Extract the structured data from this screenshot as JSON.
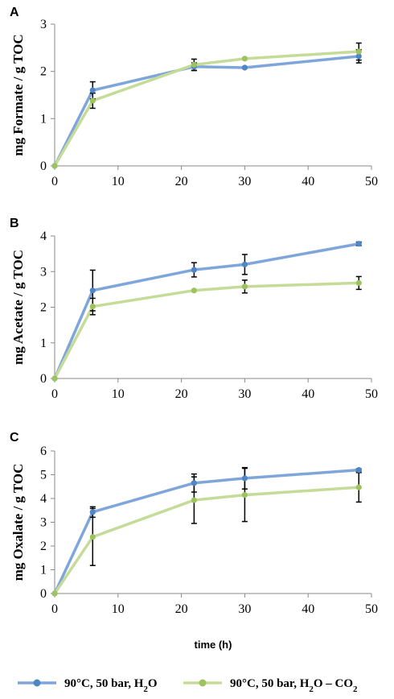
{
  "colors": {
    "blue": "#7EA6DB",
    "blue_marker": "#4E86C6",
    "green": "#C5DB98",
    "green_marker": "#9DC25E",
    "errorbar": "#000000"
  },
  "x_axis_title": "time (h)",
  "legend": [
    {
      "label": "90°C, 50 bar, H",
      "sub": "2",
      "tail": "O",
      "extra": "",
      "extra_sub": "",
      "color_key": "blue"
    },
    {
      "label": "90°C, 50 bar, H",
      "sub": "2",
      "tail": "O – CO",
      "extra": "",
      "extra_sub": "2",
      "color_key": "green"
    }
  ],
  "chart_data": [
    {
      "type": "line",
      "panel": "A",
      "ylabel": "mg Formate / g TOC",
      "xlim": [
        0,
        50
      ],
      "ylim": [
        0,
        3
      ],
      "x_ticks": [
        0,
        10,
        20,
        30,
        40,
        50
      ],
      "y_ticks": [
        0,
        1,
        2,
        3
      ],
      "grid": false,
      "series": [
        {
          "color_key": "blue",
          "x": [
            0,
            6,
            22,
            30,
            48
          ],
          "values": [
            0,
            1.6,
            2.1,
            2.08,
            2.32
          ],
          "err": [
            0,
            0.18,
            0.08,
            0,
            0.14
          ]
        },
        {
          "color_key": "green",
          "x": [
            0,
            6,
            22,
            30,
            48
          ],
          "values": [
            0,
            1.38,
            2.14,
            2.27,
            2.42
          ],
          "err": [
            0,
            0.16,
            0.12,
            0,
            0.18
          ]
        }
      ]
    },
    {
      "type": "line",
      "panel": "B",
      "ylabel": "mg Acetate / g TOC",
      "xlim": [
        0,
        50
      ],
      "ylim": [
        0,
        4
      ],
      "x_ticks": [
        0,
        10,
        20,
        30,
        40,
        50
      ],
      "y_ticks": [
        0,
        1,
        2,
        3,
        4
      ],
      "grid": false,
      "series": [
        {
          "color_key": "blue",
          "x": [
            0,
            6,
            22,
            30,
            48
          ],
          "values": [
            0,
            2.47,
            3.05,
            3.2,
            3.78
          ],
          "err": [
            0,
            0.57,
            0.2,
            0.28,
            0.05
          ]
        },
        {
          "color_key": "green",
          "x": [
            0,
            6,
            22,
            30,
            48
          ],
          "values": [
            0,
            2.02,
            2.47,
            2.58,
            2.68
          ],
          "err": [
            0,
            0.23,
            0,
            0.18,
            0.18
          ]
        }
      ]
    },
    {
      "type": "line",
      "panel": "C",
      "ylabel": "mg Oxalate / g TOC",
      "xlim": [
        0,
        50
      ],
      "ylim": [
        0,
        6
      ],
      "x_ticks": [
        0,
        10,
        20,
        30,
        40,
        50
      ],
      "y_ticks": [
        0,
        1,
        2,
        3,
        4,
        5,
        6
      ],
      "grid": false,
      "series": [
        {
          "color_key": "blue",
          "x": [
            0,
            6,
            22,
            30,
            48
          ],
          "values": [
            0,
            3.43,
            4.65,
            4.85,
            5.2
          ],
          "err": [
            0,
            0.22,
            0.38,
            0.45,
            0.05
          ]
        },
        {
          "color_key": "green",
          "x": [
            0,
            6,
            22,
            30,
            48
          ],
          "values": [
            0,
            2.38,
            3.93,
            4.15,
            4.47
          ],
          "err": [
            0,
            1.2,
            0.98,
            1.12,
            0.62
          ]
        }
      ]
    }
  ]
}
